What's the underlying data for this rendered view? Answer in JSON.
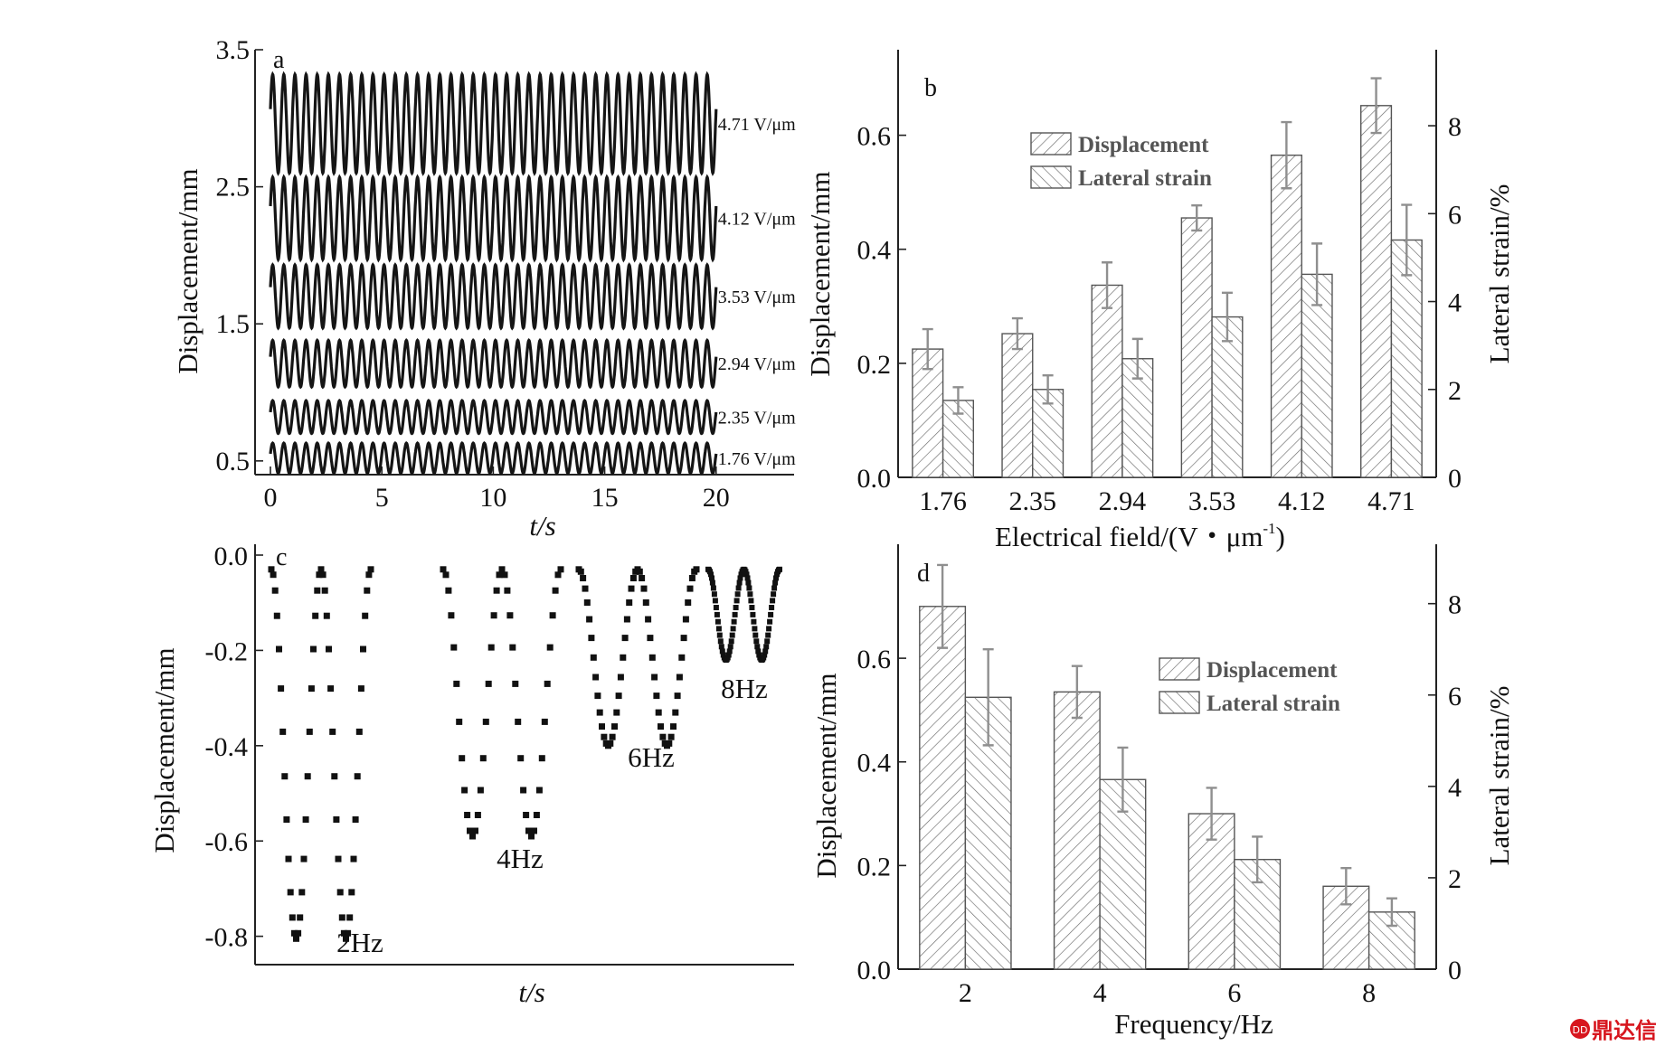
{
  "watermark": {
    "text": "鼎达信",
    "color": "#d7161e"
  },
  "chart_data": [
    {
      "panel": "a",
      "type": "line",
      "xlabel": "t/s",
      "ylabel": "Displacement/mm",
      "xlim": [
        0,
        23.5
      ],
      "ylim": [
        0.4,
        3.5
      ],
      "xticks": [
        "0",
        "5",
        "10",
        "15",
        "20"
      ],
      "xtick_values": [
        0,
        5,
        10,
        15,
        20
      ],
      "yticks": [
        "0.5",
        "1.5",
        "2.5",
        "3.5"
      ],
      "ytick_values": [
        0.5,
        1.5,
        2.5,
        3.5
      ],
      "cycles": 40,
      "series": [
        {
          "name": "4.71 V/μm",
          "center": 2.96,
          "amplitude": 0.36
        },
        {
          "name": "4.12 V/μm",
          "center": 2.27,
          "amplitude": 0.3
        },
        {
          "name": "3.53 V/μm",
          "center": 1.7,
          "amplitude": 0.23
        },
        {
          "name": "2.94 V/μm",
          "center": 1.21,
          "amplitude": 0.17
        },
        {
          "name": "2.35 V/μm",
          "center": 0.82,
          "amplitude": 0.12
        },
        {
          "name": "1.76 V/μm",
          "center": 0.52,
          "amplitude": 0.11
        }
      ]
    },
    {
      "panel": "b",
      "type": "bar",
      "xlabel": "Electrical field",
      "xlabel_units": "/(V・μm",
      "xlabel_sup": "-1",
      "xlabel_close": ")",
      "ylabel": "Displacement/mm",
      "y2label": "Lateral strain/%",
      "categories": [
        "1.76",
        "2.35",
        "2.94",
        "3.53",
        "4.12",
        "4.71"
      ],
      "ylim": [
        0,
        0.75
      ],
      "y2lim": [
        0,
        9.73
      ],
      "yticks": [
        "0.0",
        "0.2",
        "0.4",
        "0.6"
      ],
      "ytick_values": [
        0,
        0.2,
        0.4,
        0.6
      ],
      "y2ticks": [
        "0",
        "2",
        "4",
        "6",
        "8"
      ],
      "y2tick_values": [
        0,
        2,
        4,
        6,
        8
      ],
      "series": [
        {
          "name": "Displacement",
          "axis": "left",
          "values": [
            0.225,
            0.252,
            0.337,
            0.455,
            0.565,
            0.652
          ],
          "errors": [
            0.035,
            0.027,
            0.04,
            0.022,
            0.058,
            0.048
          ]
        },
        {
          "name": "Lateral strain",
          "axis": "right",
          "values": [
            1.75,
            2.0,
            2.7,
            3.65,
            4.62,
            5.4
          ],
          "errors": [
            0.3,
            0.32,
            0.45,
            0.55,
            0.7,
            0.8
          ]
        }
      ]
    },
    {
      "panel": "c",
      "type": "scatter",
      "xlabel": "t/s",
      "ylabel": "Displacement/mm",
      "ylim": [
        -0.85,
        0.0
      ],
      "yticks": [
        "0.0",
        "-0.2",
        "-0.4",
        "-0.6",
        "-0.8"
      ],
      "ytick_values": [
        0,
        -0.2,
        -0.4,
        -0.6,
        -0.8
      ],
      "series": [
        {
          "name": "2Hz",
          "amplitude": 0.775,
          "cycles": 2,
          "points_per_cycle": 26
        },
        {
          "name": "4Hz",
          "amplitude": 0.56,
          "cycles": 2,
          "points_per_cycle": 22
        },
        {
          "name": "6Hz",
          "amplitude": 0.37,
          "cycles": 2,
          "points_per_cycle": 28
        },
        {
          "name": "8Hz",
          "amplitude": 0.19,
          "cycles": 2,
          "points_per_cycle": 40
        }
      ]
    },
    {
      "panel": "d",
      "type": "bar",
      "xlabel": "Frequency/Hz",
      "ylabel": "Displacement/mm",
      "y2label": "Lateral strain/%",
      "categories": [
        "2",
        "4",
        "6",
        "8"
      ],
      "ylim": [
        0,
        0.82
      ],
      "y2lim": [
        0,
        9.3
      ],
      "yticks": [
        "0.0",
        "0.2",
        "0.4",
        "0.6"
      ],
      "ytick_values": [
        0,
        0.2,
        0.4,
        0.6
      ],
      "y2ticks": [
        "0",
        "2",
        "4",
        "6",
        "8"
      ],
      "y2tick_values": [
        0,
        2,
        4,
        6,
        8
      ],
      "series": [
        {
          "name": "Displacement",
          "axis": "left",
          "values": [
            0.7,
            0.535,
            0.3,
            0.16
          ],
          "errors": [
            0.08,
            0.05,
            0.05,
            0.035
          ]
        },
        {
          "name": "Lateral strain",
          "axis": "right",
          "values": [
            5.95,
            4.15,
            2.4,
            1.25
          ],
          "errors": [
            1.05,
            0.7,
            0.5,
            0.3
          ]
        }
      ]
    }
  ]
}
